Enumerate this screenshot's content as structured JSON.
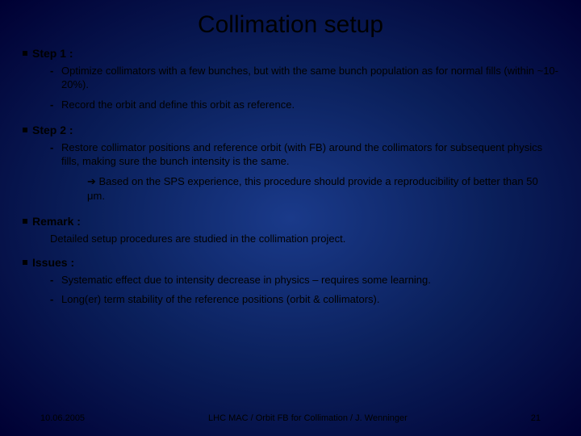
{
  "title": "Collimation setup",
  "sections": [
    {
      "heading": "Step 1 :",
      "items": [
        "Optimize collimators with a few bunches,  but with the same bunch population as for normal fills (within ~10-20%).",
        "Record the orbit and define this orbit as reference."
      ]
    },
    {
      "heading": "Step 2 :",
      "items": [
        "Restore collimator positions and reference orbit (with FB) around the collimators for subsequent physics fills, making sure the bunch intensity is the same."
      ],
      "note": "Based on the SPS experience, this procedure should provide a reproducibility of  better than 50 μm.",
      "note_prefix": "➔ "
    },
    {
      "heading": "Remark :",
      "para": "Detailed setup procedures are studied in the collimation project."
    },
    {
      "heading": "Issues :",
      "items": [
        "Systematic effect due to intensity decrease in physics – requires some learning.",
        "Long(er) term stability of the reference positions (orbit & collimators)."
      ]
    }
  ],
  "footer": {
    "date": "10.06.2005",
    "center": "LHC MAC / Orbit FB for Collimation / J. Wenninger",
    "page": "21"
  },
  "colors": {
    "bg_center": "#1a3a8a",
    "bg_mid": "#0a1f5a",
    "bg_edge": "#000033",
    "text": "#000000"
  },
  "fonts": {
    "title_size_pt": 30,
    "heading_size_pt": 14,
    "body_size_pt": 13,
    "footer_size_pt": 11
  }
}
